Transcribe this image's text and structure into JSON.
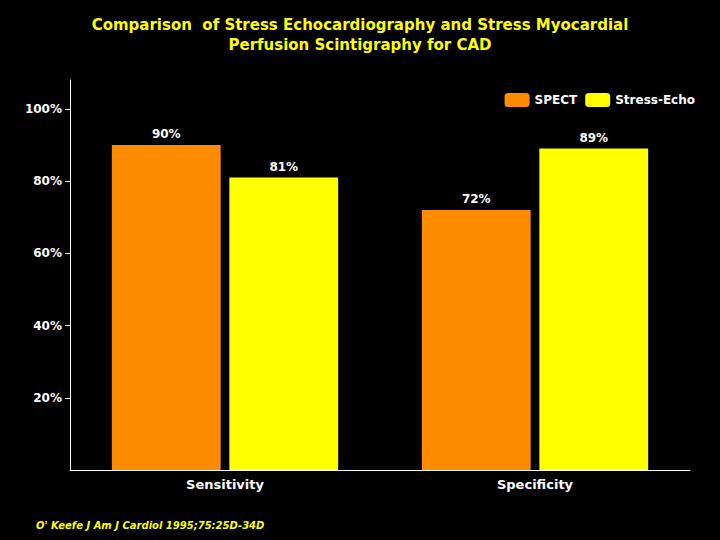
{
  "chart_data": {
    "type": "bar",
    "title": "Comparison  of Stress Echocardiography and Stress Myocardial\nPerfusion Scintigraphy for CAD",
    "categories": [
      "Sensitivity",
      "Specificity"
    ],
    "series": [
      {
        "name": "SPECT",
        "color": "#FF8C00",
        "values": [
          90,
          72
        ],
        "value_labels": [
          "90%",
          "72%"
        ]
      },
      {
        "name": "Stress-Echo",
        "color": "#FFFF00",
        "values": [
          81,
          89
        ],
        "value_labels": [
          "81%",
          "89%"
        ]
      }
    ],
    "ylim": [
      0,
      108
    ],
    "yticks": [
      {
        "value": 20,
        "label": "20%"
      },
      {
        "value": 40,
        "label": "40%"
      },
      {
        "value": 60,
        "label": "60%"
      },
      {
        "value": 80,
        "label": "80%"
      },
      {
        "value": 100,
        "label": "100%"
      }
    ],
    "grid": false,
    "legend": "upper right",
    "data_labels": true,
    "annotations": [
      "O' Keefe J Am J Cardiol 1995;75:25D-34D"
    ]
  }
}
